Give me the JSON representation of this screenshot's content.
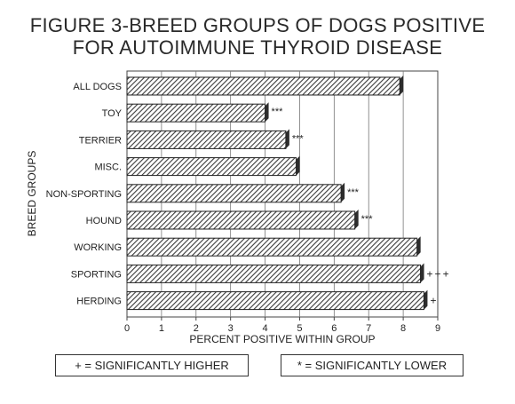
{
  "title_line1": "FIGURE 3-BREED GROUPS OF DOGS POSITIVE",
  "title_line2": "FOR AUTOIMMUNE THYROID DISEASE",
  "legend": {
    "higher": "+ = SIGNIFICANTLY HIGHER",
    "lower": "* = SIGNIFICANTLY LOWER"
  },
  "chart_data": {
    "type": "bar",
    "orientation": "horizontal",
    "title": "FIGURE 3-BREED GROUPS OF DOGS POSITIVE FOR AUTOIMMUNE THYROID DISEASE",
    "xlabel": "PERCENT POSITIVE WITHIN GROUP",
    "ylabel": "BREED GROUPS",
    "xlim": [
      0,
      9
    ],
    "xticks": [
      "0",
      "1",
      "2",
      "3",
      "4",
      "5",
      "6",
      "7",
      "8",
      "9"
    ],
    "grid": "vertical",
    "categories": [
      "ALL DOGS",
      "TOY",
      "TERRIER",
      "MISC.",
      "NON-SPORTING",
      "HOUND",
      "WORKING",
      "SPORTING",
      "HERDING"
    ],
    "values": [
      7.9,
      4.0,
      4.6,
      4.9,
      6.2,
      6.6,
      8.4,
      8.5,
      8.6
    ],
    "annotations": [
      "",
      "***",
      "***",
      "",
      "***",
      "***",
      "",
      "+++",
      "+"
    ],
    "bar_fill": "#555555"
  }
}
